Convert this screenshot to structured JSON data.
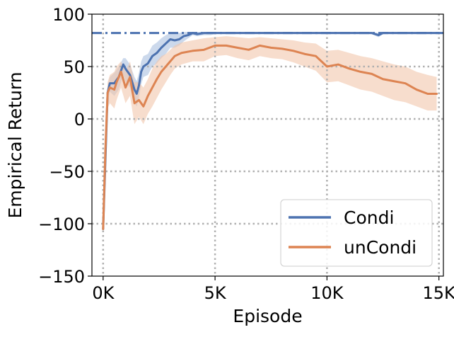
{
  "chart_data": {
    "type": "line",
    "xlabel": "Episode",
    "ylabel": "Empirical Return",
    "xlim": [
      -500,
      15200
    ],
    "ylim": [
      -150,
      100
    ],
    "x_ticks": [
      {
        "value": 0,
        "label": "0K"
      },
      {
        "value": 5000,
        "label": "5K"
      },
      {
        "value": 10000,
        "label": "10K"
      },
      {
        "value": 15000,
        "label": "15K"
      }
    ],
    "y_ticks": [
      {
        "value": 100,
        "label": "100"
      },
      {
        "value": 50,
        "label": "50"
      },
      {
        "value": 0,
        "label": "0"
      },
      {
        "value": -50,
        "label": "−50"
      },
      {
        "value": -100,
        "label": "−100"
      },
      {
        "value": -150,
        "label": "−150"
      }
    ],
    "grid": "on, dotted",
    "legend_position": "bottom-right",
    "reference_line": {
      "y": 82,
      "style": "dash-dot",
      "color": "#4c72b0"
    },
    "series": [
      {
        "name": "Condi",
        "color": "#4c72b0",
        "band_color": "#aabfdf",
        "x": [
          0,
          100,
          200,
          300,
          500,
          700,
          900,
          1000,
          1200,
          1300,
          1400,
          1500,
          1600,
          1700,
          1800,
          2000,
          2200,
          2400,
          2600,
          2800,
          3000,
          3200,
          3400,
          3600,
          3800,
          4000,
          4200,
          4500,
          4800,
          5000,
          6000,
          7000,
          8000,
          9000,
          10000,
          11000,
          12000,
          12300,
          12500,
          13000,
          14000,
          15000
        ],
        "y": [
          -105,
          -40,
          25,
          34,
          34,
          40,
          52,
          48,
          42,
          35,
          28,
          24,
          32,
          45,
          50,
          53,
          60,
          63,
          68,
          72,
          76,
          75,
          76,
          79,
          80,
          82,
          81,
          82,
          82,
          82,
          82,
          82,
          82,
          82,
          82,
          82,
          82,
          80,
          82,
          82,
          82,
          82
        ],
        "upper": [
          -100,
          -30,
          32,
          40,
          44,
          50,
          58,
          58,
          52,
          46,
          40,
          36,
          44,
          55,
          60,
          62,
          70,
          73,
          77,
          80,
          82,
          82,
          82,
          83,
          83,
          83,
          83,
          83,
          83,
          83,
          83,
          83,
          83,
          83,
          83,
          83,
          83,
          82,
          83,
          83,
          83,
          83
        ],
        "lower": [
          -110,
          -55,
          15,
          26,
          22,
          28,
          42,
          36,
          30,
          22,
          15,
          12,
          20,
          33,
          40,
          42,
          50,
          53,
          58,
          62,
          68,
          68,
          70,
          74,
          77,
          80,
          79,
          80,
          80,
          81,
          81,
          81,
          81,
          81,
          81,
          81,
          81,
          78,
          81,
          81,
          81,
          81
        ]
      },
      {
        "name": "unCondi",
        "color": "#dd8452",
        "band_color": "#f2c7ab",
        "x": [
          0,
          100,
          200,
          300,
          500,
          600,
          800,
          1000,
          1200,
          1400,
          1600,
          1800,
          2000,
          2200,
          2400,
          2600,
          2800,
          3000,
          3200,
          3500,
          4000,
          4500,
          5000,
          5500,
          6000,
          6500,
          7000,
          7500,
          8000,
          8500,
          9000,
          9500,
          10000,
          10500,
          11000,
          11500,
          12000,
          12500,
          13000,
          13500,
          14000,
          14500,
          14900
        ],
        "y": [
          -105,
          -30,
          25,
          30,
          28,
          35,
          45,
          30,
          40,
          15,
          18,
          12,
          22,
          30,
          38,
          45,
          50,
          55,
          60,
          63,
          65,
          66,
          70,
          70,
          68,
          66,
          70,
          68,
          67,
          65,
          62,
          60,
          50,
          52,
          48,
          45,
          43,
          38,
          36,
          34,
          28,
          24,
          24
        ],
        "upper": [
          -100,
          -20,
          35,
          42,
          45,
          50,
          55,
          45,
          55,
          35,
          35,
          30,
          38,
          48,
          55,
          60,
          62,
          66,
          70,
          73,
          75,
          77,
          78,
          79,
          78,
          77,
          78,
          77,
          76,
          75,
          73,
          72,
          65,
          66,
          63,
          60,
          58,
          55,
          52,
          50,
          45,
          42,
          40
        ],
        "lower": [
          -110,
          -45,
          10,
          15,
          10,
          18,
          30,
          15,
          22,
          -5,
          2,
          -5,
          5,
          12,
          20,
          28,
          35,
          42,
          48,
          52,
          55,
          55,
          60,
          61,
          58,
          56,
          60,
          58,
          57,
          54,
          50,
          46,
          35,
          36,
          32,
          28,
          26,
          22,
          18,
          16,
          12,
          8,
          8
        ]
      }
    ]
  }
}
